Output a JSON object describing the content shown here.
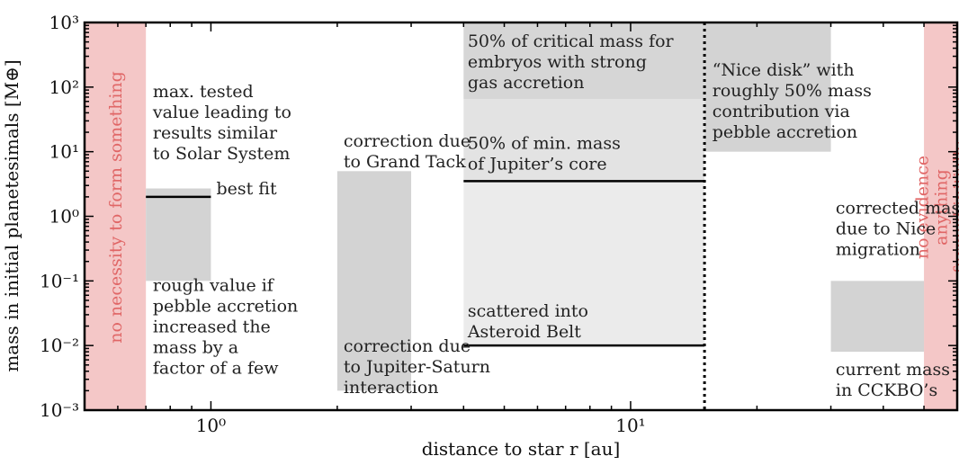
{
  "chart_data": {
    "type": "area",
    "xlabel": "distance to star r [au]",
    "ylabel": "mass in initial planetesimals [M⊕]",
    "xscale": "log",
    "yscale": "log",
    "xlim": [
      0.5,
      60
    ],
    "ylim": [
      0.001,
      1000
    ],
    "x_ticks": [
      {
        "value": 1,
        "label": "10⁰"
      },
      {
        "value": 10,
        "label": "10¹"
      }
    ],
    "y_ticks": [
      {
        "value": 0.001,
        "label": "10⁻³"
      },
      {
        "value": 0.01,
        "label": "10⁻²"
      },
      {
        "value": 0.1,
        "label": "10⁻¹"
      },
      {
        "value": 1,
        "label": "10⁰"
      },
      {
        "value": 10,
        "label": "10¹"
      },
      {
        "value": 100,
        "label": "10²"
      },
      {
        "value": 1000,
        "label": "10³"
      }
    ],
    "excluded_regions": [
      {
        "x": [
          0.5,
          0.7
        ],
        "color": "#f4c7c7",
        "label": "no necessity to form something"
      },
      {
        "x": [
          50,
          60
        ],
        "color": "#f4c7c7",
        "label": "no evidence anything formed initially"
      }
    ],
    "boxes": [
      {
        "x": [
          0.7,
          1.0
        ],
        "y": [
          0.1,
          2.7
        ],
        "color": "#d3d3d3"
      },
      {
        "x": [
          2.0,
          3.0
        ],
        "y": [
          0.002,
          5
        ],
        "color": "#d3d3d3"
      },
      {
        "x": [
          4.0,
          15.0
        ],
        "y": [
          0.01,
          3.5
        ],
        "color": "#ebebeb"
      },
      {
        "x": [
          4.0,
          15.0
        ],
        "y": [
          3.5,
          65
        ],
        "color": "#e3e3e3"
      },
      {
        "x": [
          4.0,
          15.0
        ],
        "y": [
          65,
          1000
        ],
        "color": "#d6d6d6"
      },
      {
        "x": [
          15.0,
          30.0
        ],
        "y": [
          10,
          1000
        ],
        "color": "#d3d3d3"
      },
      {
        "x": [
          30.0,
          50.0
        ],
        "y": [
          0.008,
          0.1
        ],
        "color": "#d3d3d3"
      }
    ],
    "lines": [
      {
        "x": [
          0.7,
          1.0
        ],
        "y": 2.0,
        "label": "best fit"
      },
      {
        "x": [
          4.0,
          15.0
        ],
        "y": 3.5
      },
      {
        "x": [
          4.0,
          15.0
        ],
        "y": 0.01
      }
    ],
    "vlines": [
      {
        "x": 15,
        "style": "dotted"
      }
    ],
    "annotations": [
      {
        "x": 0.72,
        "y": 70,
        "lines": [
          "max. tested",
          "value leading to",
          "results similar",
          "to Solar System"
        ]
      },
      {
        "x": 1.02,
        "y": 2.2,
        "lines": [
          "best fit"
        ]
      },
      {
        "x": 0.72,
        "y": 0.07,
        "lines": [
          "rough value if",
          "pebble accretion",
          "increased the",
          "mass by a",
          "factor of a few"
        ]
      },
      {
        "x": 2.05,
        "y": 12,
        "lines": [
          "correction due",
          "to Grand Tack"
        ]
      },
      {
        "x": 2.05,
        "y": 0.008,
        "lines": [
          "correction due",
          "to Jupiter-Saturn",
          "interaction"
        ]
      },
      {
        "x": 4.05,
        "y": 420,
        "lines": [
          "50% of critical mass for",
          "embryos with strong",
          "gas accretion"
        ]
      },
      {
        "x": 4.05,
        "y": 11,
        "lines": [
          "50% of min. mass",
          "of Jupiter’s core"
        ]
      },
      {
        "x": 4.05,
        "y": 0.028,
        "lines": [
          "scattered into",
          "Asteroid Belt"
        ]
      },
      {
        "x": 15.5,
        "y": 150,
        "lines": [
          "“Nice disk” with",
          "roughly 50% mass",
          "contribution via",
          "pebble accretion"
        ]
      },
      {
        "x": 30.5,
        "y": 1.1,
        "lines": [
          "corrected mass",
          "due to Nice",
          "migration"
        ]
      },
      {
        "x": 30.5,
        "y": 0.0035,
        "lines": [
          "current mass",
          "in CCKBO’s"
        ]
      }
    ],
    "grid": false,
    "legend": "none"
  }
}
